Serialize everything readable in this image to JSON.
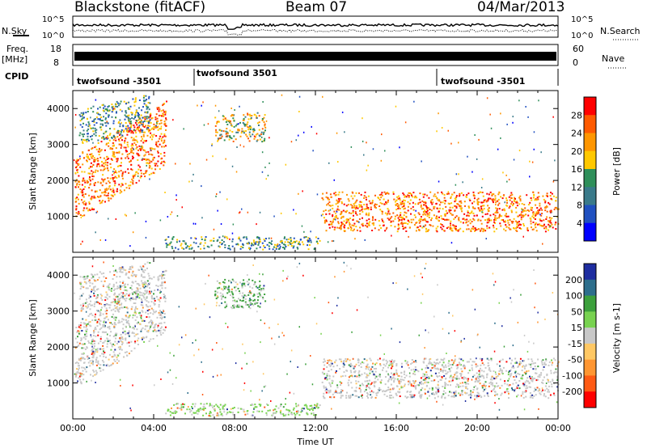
{
  "header": {
    "station": "Blackstone (fitACF)",
    "beam": "Beam 07",
    "date": "04/Mar/2013"
  },
  "noise_panel": {
    "left_label": "N.Sky",
    "right_label": "N.Search",
    "ticks": [
      "10^5",
      "10^0"
    ]
  },
  "freq_panel": {
    "left_label_line1": "Freq.",
    "left_label_line2": "[MHz]",
    "left_ticks": [
      "18",
      "8"
    ],
    "right_label": "Nave",
    "right_ticks": [
      "60",
      "0"
    ]
  },
  "cpid_panel": {
    "label": "CPID",
    "segments": [
      {
        "name": "twofsound -3501",
        "start_hour": 0,
        "end_hour": 6
      },
      {
        "name": "twofsound 3501",
        "start_hour": 6,
        "end_hour": 18
      },
      {
        "name": "twofsound -3501",
        "start_hour": 18,
        "end_hour": 24
      }
    ]
  },
  "chart_data": [
    {
      "type": "heatmap",
      "name": "power",
      "ylabel": "Slant Range [km]",
      "xlabel": "",
      "ylim": [
        0,
        4500
      ],
      "xlim_hours": [
        0,
        24
      ],
      "yticks": [
        "1000",
        "2000",
        "3000",
        "4000"
      ],
      "colorbar_label": "Power [dB]",
      "colorbar_ticks": [
        "28",
        "24",
        "20",
        "16",
        "12",
        "8",
        "4"
      ],
      "colorbar_colors": [
        "#ff0000",
        "#ff5a00",
        "#ff9600",
        "#ffc800",
        "#2f8f5a",
        "#3a7a8a",
        "#2050c0",
        "#0000ff"
      ],
      "scatter_regions": [
        {
          "t0": 0.1,
          "t1": 4.6,
          "r0": 900,
          "r1": 2700,
          "slope": 340,
          "level": 20
        },
        {
          "t0": 0.3,
          "t1": 3.8,
          "r0": 3000,
          "r1": 4000,
          "slope": 120,
          "level": 8
        },
        {
          "t0": 7.0,
          "t1": 9.5,
          "r0": 3100,
          "r1": 3900,
          "slope": 0,
          "level": 14
        },
        {
          "t0": 4.5,
          "t1": 12.2,
          "r0": 100,
          "r1": 450,
          "slope": 0,
          "level": 8
        },
        {
          "t0": 12.3,
          "t1": 24,
          "r0": 600,
          "r1": 1700,
          "slope": 0,
          "level": 20
        }
      ]
    },
    {
      "type": "heatmap",
      "name": "velocity",
      "ylabel": "Slant Range [km]",
      "xlabel": "Time UT",
      "ylim": [
        0,
        4500
      ],
      "xlim_hours": [
        0,
        24
      ],
      "yticks": [
        "1000",
        "2000",
        "3000",
        "4000"
      ],
      "xticks": [
        "00:00",
        "04:00",
        "08:00",
        "12:00",
        "16:00",
        "20:00",
        "00:00"
      ],
      "colorbar_label": "Velocity [m s-1]",
      "colorbar_ticks": [
        "200",
        "100",
        "50",
        "15",
        "-15",
        "-50",
        "-100",
        "-200"
      ],
      "colorbar_colors": [
        "#1e2da0",
        "#2d6e8c",
        "#3ca03c",
        "#78d250",
        "#c8c8c8",
        "#ffc864",
        "#ff9632",
        "#ff5a14",
        "#ff0000"
      ],
      "scatter_regions": [
        {
          "t0": 0.1,
          "t1": 4.6,
          "r0": 900,
          "r1": 2700,
          "slope": 340,
          "level": 0
        },
        {
          "t0": 0.3,
          "t1": 3.8,
          "r0": 3000,
          "r1": 4000,
          "slope": 120,
          "level": 0
        },
        {
          "t0": 7.0,
          "t1": 9.5,
          "r0": 3100,
          "r1": 3900,
          "slope": 0,
          "level": 20
        },
        {
          "t0": 4.5,
          "t1": 12.2,
          "r0": 100,
          "r1": 450,
          "slope": 0,
          "level": 40
        },
        {
          "t0": 12.3,
          "t1": 24,
          "r0": 600,
          "r1": 1700,
          "slope": 0,
          "level": 0
        }
      ]
    }
  ]
}
